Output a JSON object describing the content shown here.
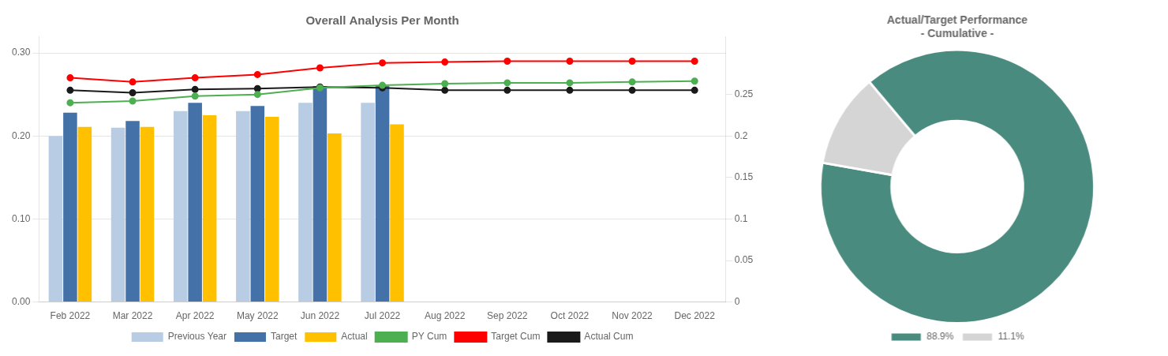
{
  "chart_data": [
    {
      "type": "bar",
      "title": "Overall Analysis Per Month",
      "categories": [
        "Feb 2022",
        "Mar 2022",
        "Apr 2022",
        "May 2022",
        "Jun 2022",
        "Jul 2022",
        "Aug 2022",
        "Sep 2022",
        "Oct 2022",
        "Nov 2022",
        "Dec 2022"
      ],
      "series": [
        {
          "name": "Previous Year",
          "color": "#b8cce4",
          "values": [
            0.2,
            0.21,
            0.23,
            0.23,
            0.24,
            0.24,
            null,
            null,
            null,
            null,
            null
          ]
        },
        {
          "name": "Target",
          "color": "#4472a8",
          "values": [
            0.228,
            0.218,
            0.24,
            0.236,
            0.26,
            0.26,
            null,
            null,
            null,
            null,
            null
          ]
        },
        {
          "name": "Actual",
          "color": "#ffc000",
          "values": [
            0.211,
            0.211,
            0.225,
            0.223,
            0.203,
            0.214,
            null,
            null,
            null,
            null,
            null
          ]
        },
        {
          "name": "PY Cum",
          "type": "line",
          "marker": "circle",
          "color": "#4caf50",
          "values": [
            0.24,
            0.242,
            0.248,
            0.25,
            0.258,
            0.261,
            0.263,
            0.264,
            0.264,
            0.265,
            0.266
          ]
        },
        {
          "name": "Target Cum",
          "type": "line",
          "marker": "circle",
          "color": "#ff0000",
          "values": [
            0.27,
            0.265,
            0.27,
            0.274,
            0.282,
            0.288,
            0.289,
            0.29,
            0.29,
            0.29,
            0.29
          ]
        },
        {
          "name": "Actual Cum",
          "type": "line",
          "marker": "circle",
          "color": "#1a1a1a",
          "values": [
            0.255,
            0.252,
            0.256,
            0.257,
            0.259,
            0.258,
            0.255,
            0.255,
            0.255,
            0.255,
            0.255
          ]
        }
      ],
      "ylim": [
        0,
        0.32
      ],
      "yticks": [
        {
          "value": 0,
          "label": "0.00"
        },
        {
          "value": 0.1,
          "label": "0.10"
        },
        {
          "value": 0.2,
          "label": "0.20"
        },
        {
          "value": 0.3,
          "label": "0.30"
        }
      ],
      "y2lim": [
        0,
        0.32
      ],
      "y2ticks": [
        0,
        0.05,
        0.1,
        0.15,
        0.2,
        0.25
      ],
      "grid": true,
      "legend": "bottom"
    },
    {
      "type": "doughnut",
      "title": "Actual/Target Performance\n- Cumulative -",
      "categories": [
        "88.9%",
        "11.1%"
      ],
      "values": [
        88.9,
        11.1
      ],
      "colors": [
        "#4a8b7f",
        "#d5d5d5"
      ],
      "legend": "bottom"
    }
  ]
}
